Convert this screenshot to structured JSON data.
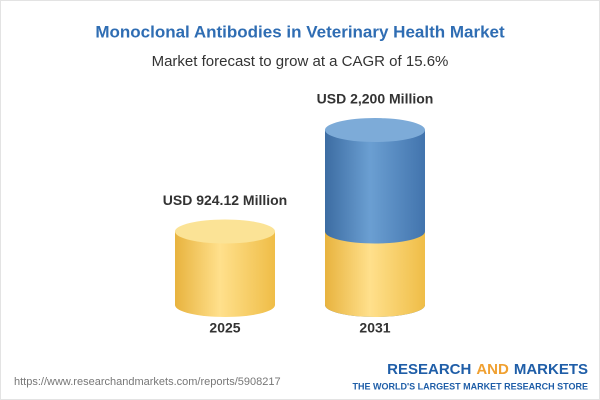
{
  "chart_data": {
    "type": "cylinder",
    "title": "Monoclonal Antibodies in Veterinary Health Market",
    "subtitle": "Market forecast to grow at a CAGR of 15.6%",
    "categories": [
      "2025",
      "2031"
    ],
    "values": [
      924.12,
      2200
    ],
    "value_labels": [
      "USD 924.12 Million",
      "USD 2,200 Million"
    ],
    "colors": [
      "#f2c453",
      "#4b7fb7"
    ]
  },
  "footer": {
    "url": "https://www.researchandmarkets.com/reports/5908217",
    "brand": [
      "RESEARCH",
      "AND",
      "MARKETS"
    ],
    "tagline": "THE WORLD'S LARGEST MARKET RESEARCH STORE"
  }
}
